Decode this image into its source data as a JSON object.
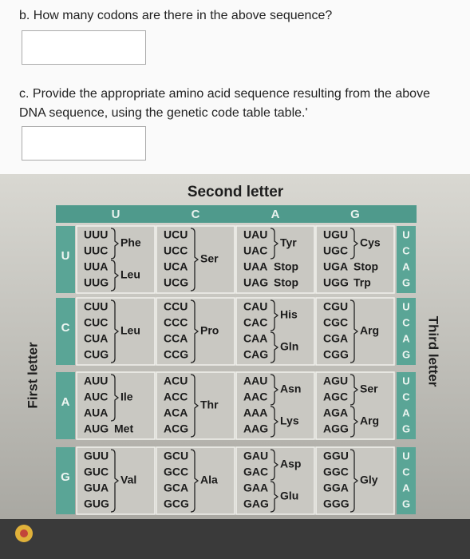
{
  "questions": [
    {
      "text": "b. How many codons are there in the above sequence?"
    },
    {
      "text": "c. Provide the appropriate amino acid sequence resulting from the above DNA sequence, using the genetic code table table.'"
    }
  ],
  "table": {
    "title": "Second letter",
    "first_letter_label": "First letter",
    "third_letter_label": "Third letter",
    "second_letters": [
      "U",
      "C",
      "A",
      "G"
    ],
    "rows": [
      {
        "first_letter": "U",
        "third_letters": [
          "U",
          "C",
          "A",
          "G"
        ],
        "cells": [
          {
            "groups": [
              {
                "codons": [
                  "UUU",
                  "UUC"
                ],
                "amino_acid": "Phe"
              },
              {
                "codons": [
                  "UUA",
                  "UUG"
                ],
                "amino_acid": "Leu"
              }
            ]
          },
          {
            "groups": [
              {
                "codons": [
                  "UCU",
                  "UCC",
                  "UCA",
                  "UCG"
                ],
                "amino_acid": "Ser"
              }
            ]
          },
          {
            "groups": [
              {
                "codons": [
                  "UAU",
                  "UAC"
                ],
                "amino_acid": "Tyr"
              },
              {
                "codons": [
                  "UAA"
                ],
                "amino_acid": "Stop"
              },
              {
                "codons": [
                  "UAG"
                ],
                "amino_acid": "Stop"
              }
            ]
          },
          {
            "groups": [
              {
                "codons": [
                  "UGU",
                  "UGC"
                ],
                "amino_acid": "Cys"
              },
              {
                "codons": [
                  "UGA"
                ],
                "amino_acid": "Stop"
              },
              {
                "codons": [
                  "UGG"
                ],
                "amino_acid": "Trp"
              }
            ]
          }
        ]
      },
      {
        "first_letter": "C",
        "third_letters": [
          "U",
          "C",
          "A",
          "G"
        ],
        "cells": [
          {
            "groups": [
              {
                "codons": [
                  "CUU",
                  "CUC",
                  "CUA",
                  "CUG"
                ],
                "amino_acid": "Leu"
              }
            ]
          },
          {
            "groups": [
              {
                "codons": [
                  "CCU",
                  "CCC",
                  "CCA",
                  "CCG"
                ],
                "amino_acid": "Pro"
              }
            ]
          },
          {
            "groups": [
              {
                "codons": [
                  "CAU",
                  "CAC"
                ],
                "amino_acid": "His"
              },
              {
                "codons": [
                  "CAA",
                  "CAG"
                ],
                "amino_acid": "Gln"
              }
            ]
          },
          {
            "groups": [
              {
                "codons": [
                  "CGU",
                  "CGC",
                  "CGA",
                  "CGG"
                ],
                "amino_acid": "Arg"
              }
            ]
          }
        ]
      },
      {
        "first_letter": "A",
        "third_letters": [
          "U",
          "C",
          "A",
          "G"
        ],
        "cells": [
          {
            "groups": [
              {
                "codons": [
                  "AUU",
                  "AUC",
                  "AUA"
                ],
                "amino_acid": "Ile"
              },
              {
                "codons": [
                  "AUG"
                ],
                "amino_acid": "Met"
              }
            ]
          },
          {
            "groups": [
              {
                "codons": [
                  "ACU",
                  "ACC",
                  "ACA",
                  "ACG"
                ],
                "amino_acid": "Thr"
              }
            ]
          },
          {
            "groups": [
              {
                "codons": [
                  "AAU",
                  "AAC"
                ],
                "amino_acid": "Asn"
              },
              {
                "codons": [
                  "AAA",
                  "AAG"
                ],
                "amino_acid": "Lys"
              }
            ]
          },
          {
            "groups": [
              {
                "codons": [
                  "AGU",
                  "AGC"
                ],
                "amino_acid": "Ser"
              },
              {
                "codons": [
                  "AGA",
                  "AGG"
                ],
                "amino_acid": "Arg"
              }
            ]
          }
        ]
      },
      {
        "first_letter": "G",
        "third_letters": [
          "U",
          "C",
          "A",
          "G"
        ],
        "cells": [
          {
            "groups": [
              {
                "codons": [
                  "GUU",
                  "GUC",
                  "GUA",
                  "GUG"
                ],
                "amino_acid": "Val"
              }
            ]
          },
          {
            "groups": [
              {
                "codons": [
                  "GCU",
                  "GCC",
                  "GCA",
                  "GCG"
                ],
                "amino_acid": "Ala"
              }
            ]
          },
          {
            "groups": [
              {
                "codons": [
                  "GAU",
                  "GAC"
                ],
                "amino_acid": "Asp"
              },
              {
                "codons": [
                  "GAA",
                  "GAG"
                ],
                "amino_acid": "Glu"
              }
            ]
          },
          {
            "groups": [
              {
                "codons": [
                  "GGU",
                  "GGC",
                  "GGA",
                  "GGG"
                ],
                "amino_acid": "Gly"
              }
            ]
          }
        ]
      }
    ]
  }
}
